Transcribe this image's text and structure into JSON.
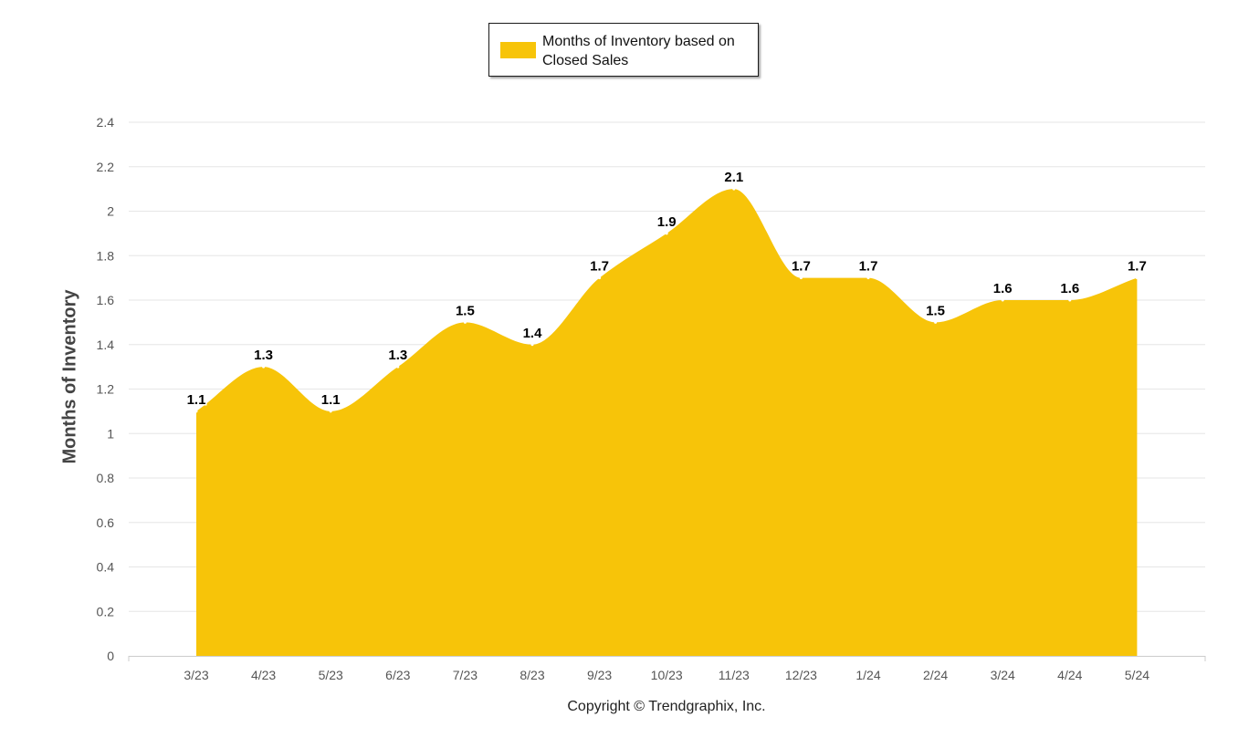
{
  "legend": {
    "label": "Months of Inventory based on Closed Sales",
    "color": "#F7C409"
  },
  "copyright": "Copyright © Trendgraphix, Inc.",
  "chart_data": {
    "type": "area",
    "categories": [
      "3/23",
      "4/23",
      "5/23",
      "6/23",
      "7/23",
      "8/23",
      "9/23",
      "10/23",
      "11/23",
      "12/23",
      "1/24",
      "2/24",
      "3/24",
      "4/24",
      "5/24"
    ],
    "series": [
      {
        "name": "Months of Inventory based on Closed Sales",
        "values": [
          1.1,
          1.3,
          1.1,
          1.3,
          1.5,
          1.4,
          1.7,
          1.9,
          2.1,
          1.7,
          1.7,
          1.5,
          1.6,
          1.6,
          1.7
        ],
        "color": "#F7C409"
      }
    ],
    "ylabel": "Months of Inventory",
    "xlabel": "",
    "ylim": [
      0,
      2.4
    ],
    "yticks": [
      0,
      0.2,
      0.4,
      0.6,
      0.8,
      1,
      1.2,
      1.4,
      1.6,
      1.8,
      2,
      2.2,
      2.4
    ],
    "grid": true,
    "legend_position": "top-center",
    "data_labels": true
  }
}
